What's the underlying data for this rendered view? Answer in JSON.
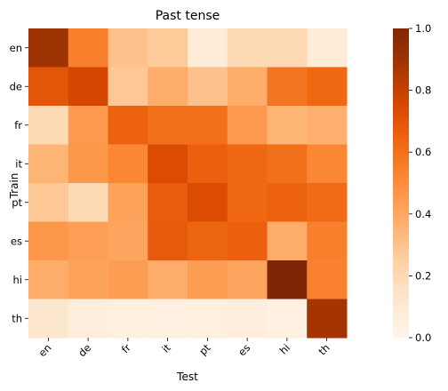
{
  "chart_data": {
    "type": "heatmap",
    "title": "Past tense",
    "xlabel": "Test",
    "ylabel": "Train",
    "x_categories": [
      "en",
      "de",
      "fr",
      "it",
      "pt",
      "es",
      "hi",
      "th"
    ],
    "y_categories": [
      "en",
      "de",
      "fr",
      "it",
      "pt",
      "es",
      "hi",
      "th"
    ],
    "values": [
      [
        0.9,
        0.55,
        0.3,
        0.27,
        0.08,
        0.2,
        0.2,
        0.08
      ],
      [
        0.7,
        0.76,
        0.28,
        0.38,
        0.3,
        0.38,
        0.58,
        0.63
      ],
      [
        0.2,
        0.45,
        0.65,
        0.6,
        0.6,
        0.45,
        0.35,
        0.37
      ],
      [
        0.35,
        0.46,
        0.52,
        0.74,
        0.66,
        0.63,
        0.6,
        0.52
      ],
      [
        0.28,
        0.2,
        0.42,
        0.67,
        0.74,
        0.63,
        0.65,
        0.62
      ],
      [
        0.46,
        0.43,
        0.41,
        0.68,
        0.64,
        0.66,
        0.38,
        0.55
      ],
      [
        0.38,
        0.42,
        0.44,
        0.38,
        0.44,
        0.41,
        1.0,
        0.54
      ],
      [
        0.12,
        0.07,
        0.05,
        0.04,
        0.05,
        0.06,
        0.04,
        0.88
      ]
    ],
    "colormap": "Oranges",
    "colorbar": {
      "range": [
        0.0,
        1.0
      ],
      "ticks": [
        0.0,
        0.2,
        0.4,
        0.6,
        0.8,
        1.0
      ],
      "tick_labels": [
        "0.0",
        "0.2",
        "0.4",
        "0.6",
        "0.8",
        "1.0"
      ]
    },
    "x_tick_rotation": 45,
    "grid": false
  }
}
